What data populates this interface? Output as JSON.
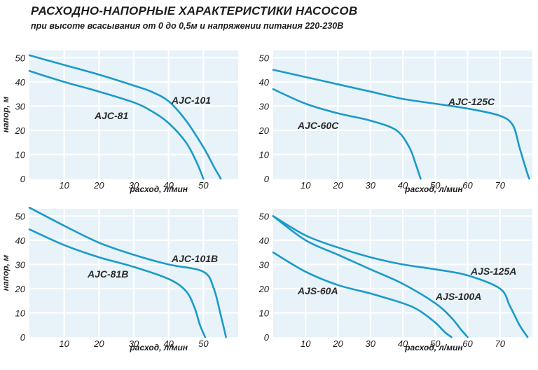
{
  "header": {
    "title": "РАСХОДНО-НАПОРНЫЕ ХАРАКТЕРИСТИКИ НАСОСОВ",
    "subtitle": "при высоте всасывания от 0 до 0,5м и напряжении питания 220-230В"
  },
  "colors": {
    "curve": "#1b9ac8",
    "plot_background": "#e7f2f9",
    "grid": "#ffffff"
  },
  "chart_data": [
    {
      "type": "line",
      "xlabel": "расход, л/мин",
      "ylabel": "напор, м",
      "xlim": [
        0,
        60
      ],
      "ylim": [
        0,
        53
      ],
      "xticks": [
        10,
        20,
        30,
        40,
        50
      ],
      "yticks": [
        0,
        10,
        20,
        30,
        40,
        50
      ],
      "grid": true,
      "series": [
        {
          "name": "AJC-101",
          "x": [
            0,
            10,
            20,
            30,
            35,
            40,
            45,
            50,
            53,
            55
          ],
          "y": [
            51,
            47,
            43,
            38.5,
            36,
            32,
            24,
            13,
            5,
            0
          ]
        },
        {
          "name": "AJC-81",
          "x": [
            0,
            10,
            20,
            30,
            35,
            40,
            45,
            48,
            50
          ],
          "y": [
            44.5,
            40,
            36,
            31.5,
            28,
            23,
            15,
            7,
            0
          ]
        }
      ]
    },
    {
      "type": "line",
      "xlabel": "расход, л/мин",
      "ylabel": "",
      "xlim": [
        0,
        80
      ],
      "ylim": [
        0,
        53
      ],
      "xticks": [
        10,
        20,
        30,
        40,
        50,
        60,
        70
      ],
      "yticks": [
        0,
        10,
        20,
        30,
        40,
        50
      ],
      "grid": true,
      "series": [
        {
          "name": "AJC-125C",
          "x": [
            0,
            10,
            20,
            30,
            40,
            50,
            60,
            70,
            74,
            76,
            78,
            79
          ],
          "y": [
            45,
            42,
            39,
            36,
            33,
            31,
            29,
            26,
            22,
            13,
            4,
            0
          ]
        },
        {
          "name": "AJC-60C",
          "x": [
            0,
            10,
            20,
            30,
            38,
            42,
            44,
            45.5
          ],
          "y": [
            37,
            31,
            27,
            24,
            20,
            13,
            6,
            0
          ]
        }
      ]
    },
    {
      "type": "line",
      "xlabel": "расход, л/мин",
      "ylabel": "напор, м",
      "xlim": [
        0,
        60
      ],
      "ylim": [
        0,
        53
      ],
      "xticks": [
        10,
        20,
        30,
        40,
        50
      ],
      "yticks": [
        0,
        10,
        20,
        30,
        40,
        50
      ],
      "grid": true,
      "series": [
        {
          "name": "AJC-101B",
          "x": [
            0,
            10,
            20,
            30,
            40,
            50,
            53,
            55,
            56.5
          ],
          "y": [
            53.5,
            46,
            39,
            34,
            30,
            27,
            20,
            9,
            0
          ]
        },
        {
          "name": "AJC-81B",
          "x": [
            0,
            10,
            20,
            30,
            40,
            45,
            47.5,
            49,
            50.5
          ],
          "y": [
            44.5,
            38,
            33,
            29,
            24,
            19,
            12,
            5,
            0
          ]
        }
      ]
    },
    {
      "type": "line",
      "xlabel": "расход, л/мин",
      "ylabel": "",
      "xlim": [
        0,
        80
      ],
      "ylim": [
        0,
        53
      ],
      "xticks": [
        10,
        20,
        30,
        40,
        50,
        60,
        70
      ],
      "yticks": [
        0,
        10,
        20,
        30,
        40,
        50
      ],
      "grid": true,
      "series": [
        {
          "name": "AJS-125A",
          "x": [
            0,
            10,
            20,
            30,
            40,
            50,
            60,
            70,
            73,
            76,
            78.5
          ],
          "y": [
            50,
            42,
            37,
            33,
            30,
            28,
            25.5,
            20,
            13,
            5,
            0
          ]
        },
        {
          "name": "AJS-100A",
          "x": [
            0,
            10,
            20,
            30,
            40,
            50,
            55,
            58,
            60
          ],
          "y": [
            50,
            40,
            34,
            28,
            22,
            14,
            8,
            3,
            0
          ]
        },
        {
          "name": "AJS-60A",
          "x": [
            0,
            10,
            20,
            30,
            40,
            45,
            50,
            53,
            55
          ],
          "y": [
            35,
            27,
            21.5,
            18,
            14,
            11,
            6,
            2,
            0
          ]
        }
      ]
    }
  ]
}
